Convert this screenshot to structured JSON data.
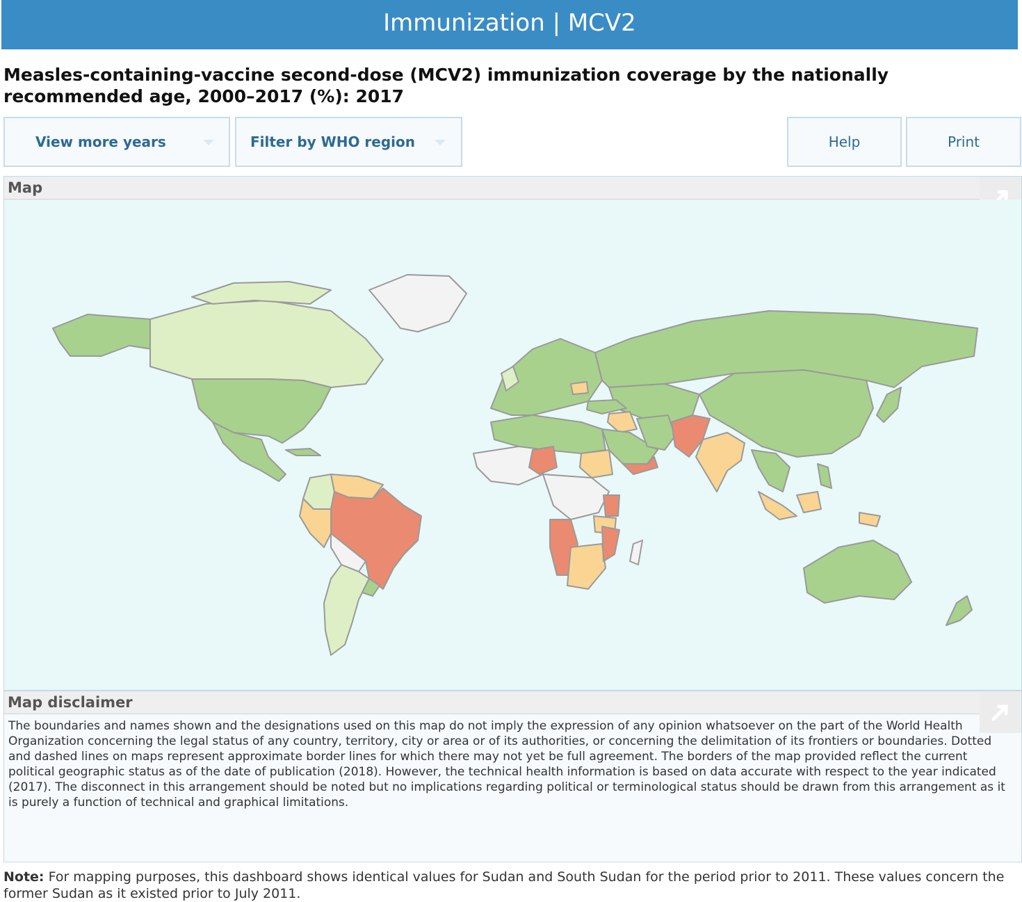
{
  "header": {
    "title": "Immunization | MCV2"
  },
  "page_title": "Measles-containing-vaccine second-dose (MCV2) immunization coverage by the nationally recommended age, 2000–2017 (%): 2017",
  "toolbar": {
    "years_label": "View more years",
    "region_label": "Filter by WHO region",
    "help_label": "Help",
    "print_label": "Print"
  },
  "map_panel": {
    "title": "Map"
  },
  "disclaimer_panel": {
    "title": "Map disclaimer",
    "text": "The boundaries and names shown and the designations used on this map do not imply the expression of any opinion whatsoever on the part of the World Health Organization concerning the legal status of any country, territory, city or area or of its authorities, or concerning the delimitation of its frontiers or boundaries. Dotted and dashed lines on maps represent approximate border lines for which there may not yet be full agreement. The borders of the map provided reflect the current political geographic status as of the date of publication (2018). However, the technical health information is based on data accurate with respect to the year indicated (2017). The disconnect in this arrangement should be noted but no implications regarding political or terminological status should be drawn from this arrangement as it is purely a function of technical and graphical limitations."
  },
  "note": {
    "label": "Note:",
    "text": " For mapping purposes, this dashboard shows identical values for Sudan and South Sudan for the period prior to 2011. These values concern the former Sudan as it existed prior to July 2011."
  },
  "colors": {
    "header_bg": "#3a8cc4",
    "ocean": "#e9f8f8",
    "high_coverage": "#a8d18d",
    "medium_high": "#deefc5",
    "medium": "#f9d493",
    "low": "#ea8a70",
    "no_data": "#f3f3f3",
    "border": "#9a9a9a"
  }
}
